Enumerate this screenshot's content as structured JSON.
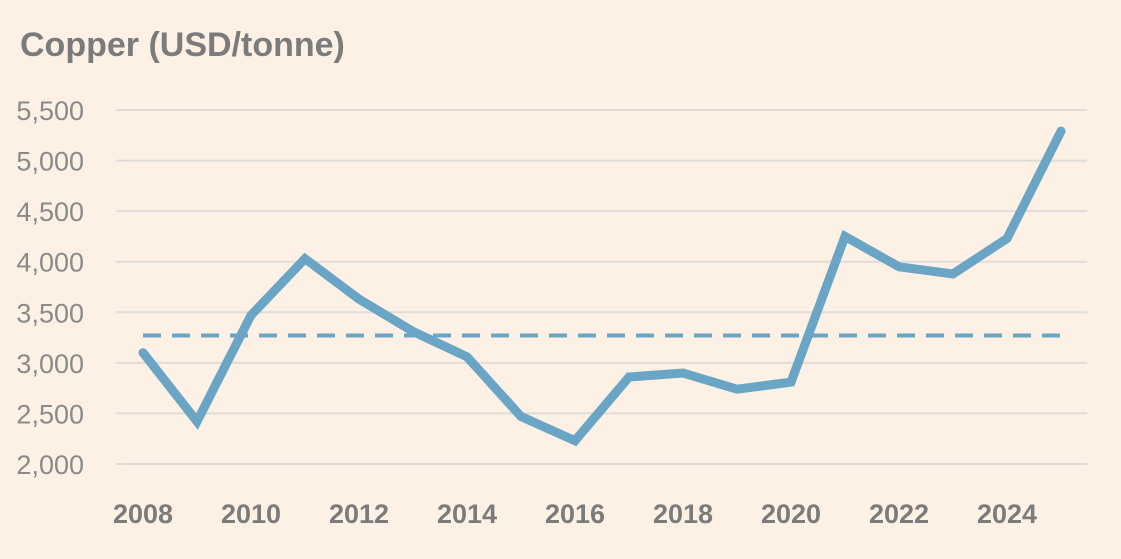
{
  "chart_data": {
    "type": "line",
    "title": "Copper (USD/tonne)",
    "xlabel": "",
    "ylabel": "",
    "ylim": [
      2000,
      5500
    ],
    "yticks": [
      "2,000",
      "2,500",
      "3,000",
      "3,500",
      "4,000",
      "4,500",
      "5,000",
      "5,500"
    ],
    "ytick_values": [
      2000,
      2500,
      3000,
      3500,
      4000,
      4500,
      5000,
      5500
    ],
    "xticks": [
      "2008",
      "2010",
      "2012",
      "2014",
      "2016",
      "2018",
      "2020",
      "2022",
      "2024"
    ],
    "xtick_values": [
      2008,
      2010,
      2012,
      2014,
      2016,
      2018,
      2020,
      2022,
      2024
    ],
    "xlim": [
      2008,
      2025
    ],
    "grid": true,
    "series": [
      {
        "x": [
          2008,
          2009,
          2010,
          2011,
          2012,
          2013,
          2014,
          2015,
          2016,
          2017,
          2018,
          2019,
          2020,
          2021,
          2022,
          2023,
          2024,
          2025
        ],
        "values": [
          3100,
          2420,
          3470,
          4030,
          3630,
          3310,
          3060,
          2470,
          2230,
          2860,
          2900,
          2740,
          2810,
          4250,
          3950,
          3880,
          4230,
          5290
        ],
        "color": "#6aa5c6",
        "style": "solid"
      }
    ],
    "reference_line": {
      "value": 3270,
      "color": "#6aa5c6",
      "style": "dashed"
    }
  }
}
